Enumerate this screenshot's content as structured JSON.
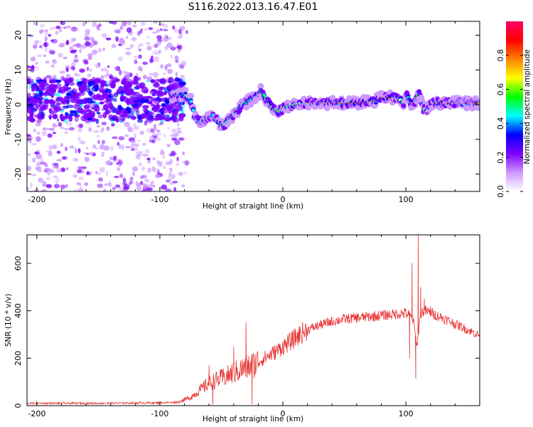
{
  "title": "S116.2022.013.16.47.E01",
  "chart_data": [
    {
      "type": "heatmap",
      "xlabel": "Height of straight line (km)",
      "ylabel": "Frequency (Hz)",
      "xlim": [
        -208,
        160
      ],
      "ylim": [
        -25,
        24
      ],
      "x_ticks": [
        -200,
        -100,
        0,
        100
      ],
      "y_ticks": [
        -20,
        -10,
        0,
        10,
        20
      ],
      "x_tick_labels": [
        "-200",
        "-100",
        "0",
        "100"
      ],
      "y_tick_labels": [
        "-20",
        "-10",
        "0",
        "10",
        "20"
      ],
      "ridge": {
        "x": [
          -90,
          -80,
          -75,
          -72,
          -68,
          -62,
          -57,
          -53,
          -48,
          -43,
          -38,
          -33,
          -28,
          -23,
          -18,
          -13,
          -8,
          -3,
          2,
          10,
          20,
          40,
          60,
          75,
          80,
          85,
          90,
          95,
          98,
          100,
          103,
          106,
          108,
          111,
          114,
          117,
          120,
          125,
          135,
          150,
          160
        ],
        "y": [
          2.5,
          3,
          1.5,
          -3,
          -5,
          -4,
          -3,
          -5,
          -6,
          -4,
          -2,
          0,
          1,
          2,
          4,
          1.5,
          -1,
          -2,
          -0.5,
          0,
          0.5,
          0.5,
          0.5,
          1,
          2,
          2,
          2,
          1.5,
          0.5,
          3,
          1,
          0,
          2,
          3,
          -1,
          -2,
          0.5,
          0.5,
          0.5,
          0.5,
          0.3
        ]
      },
      "colorbar": {
        "label": "Normalized spectral amplitude",
        "ticks": [
          0.0,
          0.2,
          0.4,
          0.6,
          0.8
        ],
        "tick_labels": [
          "0.0",
          "0.2",
          "0.4",
          "0.6",
          "0.8"
        ],
        "range": [
          0,
          1
        ],
        "colors": [
          "#ffffff",
          "#cc99ff",
          "#7f00ff",
          "#0000ff",
          "#00ffff",
          "#00ff00",
          "#ffff00",
          "#ff8000",
          "#ff0000",
          "#ff0066"
        ]
      }
    },
    {
      "type": "line",
      "xlabel": "Height of straight line (km)",
      "ylabel": "SNR (10 * v/v)",
      "xlim": [
        -208,
        160
      ],
      "ylim": [
        0,
        720
      ],
      "x_ticks": [
        -200,
        -100,
        0,
        100
      ],
      "y_ticks": [
        0,
        200,
        400,
        600
      ],
      "x_tick_labels": [
        "-200",
        "-100",
        "0",
        "100"
      ],
      "y_tick_labels": [
        "0",
        "200",
        "400",
        "600"
      ],
      "color": "#e83030",
      "envelope": {
        "x": [
          -208,
          -150,
          -100,
          -85,
          -80,
          -75,
          -70,
          -65,
          -60,
          -55,
          -50,
          -45,
          -40,
          -35,
          -30,
          -25,
          -20,
          -15,
          -10,
          -5,
          0,
          5,
          10,
          15,
          20,
          30,
          40,
          50,
          60,
          70,
          80,
          90,
          100,
          103,
          106,
          109,
          112,
          115,
          118,
          121,
          125,
          130,
          140,
          150,
          160
        ],
        "y": [
          10,
          10,
          12,
          15,
          25,
          35,
          55,
          75,
          95,
          105,
          115,
          125,
          140,
          150,
          160,
          170,
          185,
          200,
          215,
          230,
          250,
          265,
          285,
          305,
          320,
          340,
          355,
          365,
          370,
          375,
          380,
          385,
          390,
          380,
          360,
          250,
          390,
          400,
          395,
          390,
          380,
          370,
          345,
          320,
          295
        ]
      },
      "spikes": [
        {
          "x": -60,
          "y": 170
        },
        {
          "x": -57,
          "y": 5
        },
        {
          "x": -40,
          "y": 250
        },
        {
          "x": -30,
          "y": 350
        },
        {
          "x": -25,
          "y": 5
        },
        {
          "x": 103,
          "y": 200
        },
        {
          "x": 105,
          "y": 600
        },
        {
          "x": 108,
          "y": 115
        },
        {
          "x": 110,
          "y": 720
        },
        {
          "x": 112,
          "y": 500
        },
        {
          "x": 115,
          "y": 450
        },
        {
          "x": 120,
          "y": 420
        }
      ]
    }
  ]
}
